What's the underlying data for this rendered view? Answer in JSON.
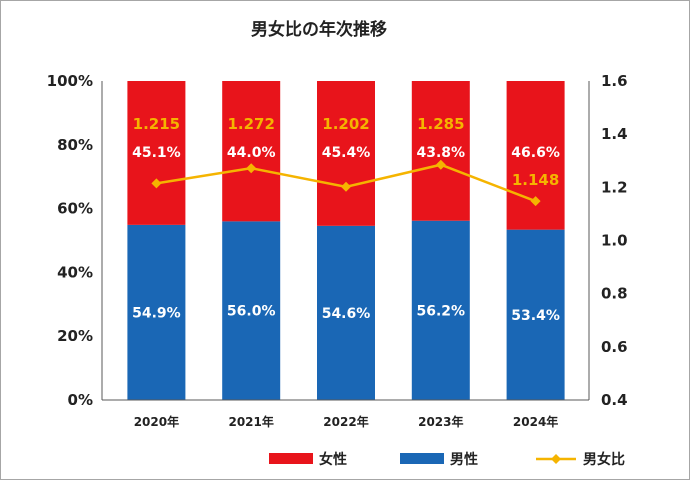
{
  "chart_data": {
    "type": "bar",
    "title": "男女比の年次推移",
    "categories": [
      "2020年",
      "2021年",
      "2022年",
      "2023年",
      "2024年"
    ],
    "series": [
      {
        "name": "男性",
        "values": [
          54.9,
          56.0,
          54.6,
          56.2,
          53.4
        ],
        "labels": [
          "54.9%",
          "56.0%",
          "54.6%",
          "56.2%",
          "53.4%"
        ],
        "color": "#1a67b5"
      },
      {
        "name": "女性",
        "values": [
          45.1,
          44.0,
          45.4,
          43.8,
          46.6
        ],
        "labels": [
          "45.1%",
          "44.0%",
          "45.4%",
          "43.8%",
          "46.6%"
        ],
        "color": "#e8141b"
      }
    ],
    "line_series": {
      "name": "男女比",
      "values": [
        1.215,
        1.272,
        1.202,
        1.285,
        1.148
      ],
      "labels": [
        "1.215",
        "1.272",
        "1.202",
        "1.285",
        "1.148"
      ],
      "color": "#f5b400"
    },
    "y_left": {
      "range": [
        0,
        100
      ],
      "ticks": [
        "0%",
        "20%",
        "40%",
        "60%",
        "80%",
        "100%"
      ]
    },
    "y_right": {
      "range": [
        0.4,
        1.6
      ],
      "ticks": [
        "0.4",
        "0.6",
        "0.8",
        "1.0",
        "1.2",
        "1.4",
        "1.6"
      ]
    },
    "stacked": true,
    "legend": "bottom-right",
    "grid": false
  }
}
